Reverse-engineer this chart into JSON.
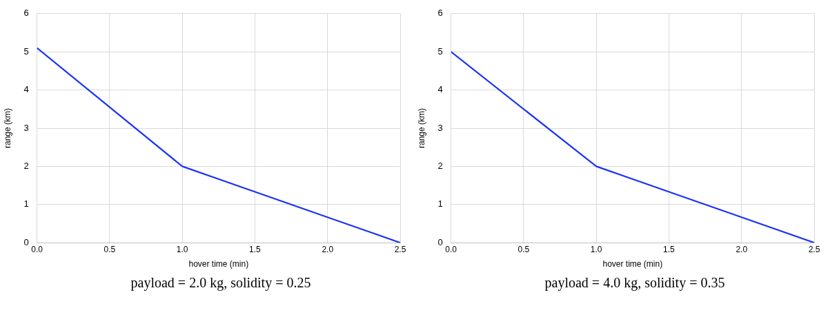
{
  "chart_data": [
    {
      "type": "line",
      "xlabel": "hover time (min)",
      "ylabel": "range (km)",
      "x": [
        0,
        1,
        2.5
      ],
      "series": [
        {
          "color": "#1a33f5",
          "values": [
            5.1,
            2,
            0
          ]
        }
      ],
      "xlim": [
        0,
        2.5
      ],
      "xticks": [
        {
          "value": 0,
          "label": "0.0"
        },
        {
          "value": 0.5,
          "label": "0.5"
        },
        {
          "value": 1,
          "label": "1.0"
        },
        {
          "value": 1.5,
          "label": "1.5"
        },
        {
          "value": 2,
          "label": "2.0"
        },
        {
          "value": 2.5,
          "label": "2.5"
        }
      ],
      "ylim": [
        0,
        6
      ],
      "yticks": [
        0,
        1,
        2,
        3,
        4,
        5,
        6
      ],
      "grid": true,
      "legend": false,
      "marker": "none",
      "annotations": [
        "payload = 2.0 kg, solidity = 0.25"
      ]
    },
    {
      "type": "line",
      "xlabel": "hover time (min)",
      "ylabel": "range (km)",
      "x": [
        0,
        1,
        2.5
      ],
      "series": [
        {
          "color": "#1a33f5",
          "values": [
            5,
            2,
            0
          ]
        }
      ],
      "xlim": [
        0,
        2.5
      ],
      "xticks": [
        {
          "value": 0,
          "label": "0.0"
        },
        {
          "value": 0.5,
          "label": "0.5"
        },
        {
          "value": 1,
          "label": "1.0"
        },
        {
          "value": 1.5,
          "label": "1.5"
        },
        {
          "value": 2,
          "label": "2.0"
        },
        {
          "value": 2.5,
          "label": "2.5"
        }
      ],
      "ylim": [
        0,
        6
      ],
      "yticks": [
        0,
        1,
        2,
        3,
        4,
        5,
        6
      ],
      "grid": true,
      "legend": false,
      "marker": "none",
      "annotations": [
        "payload = 4.0 kg, solidity = 0.35"
      ]
    }
  ]
}
